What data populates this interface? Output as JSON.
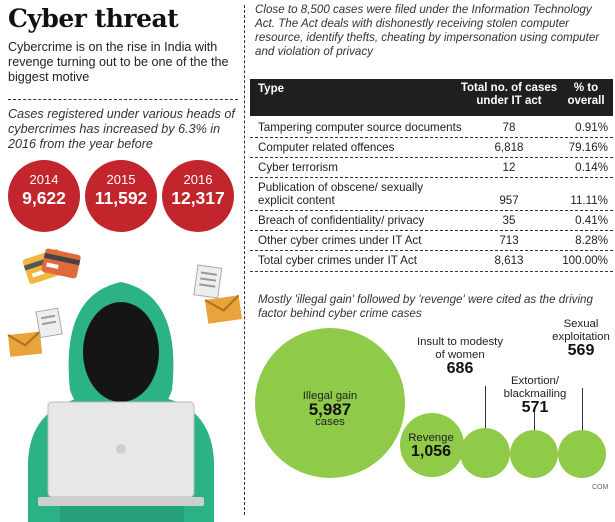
{
  "header": {
    "title": "Cyber threat",
    "subtitle": "Cybercrime is on the rise in India with revenge turning out to be one of the the biggest motive"
  },
  "stat_note": "Cases registered under various heads of cybercrimes has increased by 6.3% in 2016 from the year before",
  "years": [
    {
      "year": "2014",
      "count": "9,622"
    },
    {
      "year": "2015",
      "count": "11,592"
    },
    {
      "year": "2016",
      "count": "12,317"
    }
  ],
  "intro": "Close to 8,500 cases were filed under the Information Technology Act. The Act deals with dishonestly receiving stolen computer resource, identify thefts, cheating by impersonation using computer and violation of privacy",
  "table": {
    "headers": {
      "type": "Type",
      "cases": "Total no. of cases under IT act",
      "pct": "% to overall"
    },
    "rows": [
      {
        "type": "Tampering computer source documents",
        "cases": "78",
        "pct": "0.91%"
      },
      {
        "type": "Computer related offences",
        "cases": "6,818",
        "pct": "79.16%"
      },
      {
        "type": "Cyber terrorism",
        "cases": "12",
        "pct": "0.14%"
      },
      {
        "type": "Publication of obscene/ sexually explicit content",
        "cases": "957",
        "pct": "11.11%"
      },
      {
        "type": "Breach of confidentiality/ privacy",
        "cases": "35",
        "pct": "0.41%"
      },
      {
        "type": "Other cyber crimes under IT Act",
        "cases": "713",
        "pct": "8.28%"
      },
      {
        "type": "Total cyber crimes under IT Act",
        "cases": "8,613",
        "pct": "100.00%"
      }
    ]
  },
  "motives": {
    "note": "Mostly 'illegal gain' followed by 'revenge' were cited as the driving factor behind cyber crime cases",
    "items": [
      {
        "label": "Illegal gain",
        "value": "5,987",
        "unit": "cases"
      },
      {
        "label": "Revenge",
        "value": "1,056"
      },
      {
        "label": "Insult to modesty of women",
        "value": "686"
      },
      {
        "label": "Extortion/ blackmailing",
        "value": "571"
      },
      {
        "label": "Sexual exploitation",
        "value": "569"
      }
    ]
  },
  "credit": "COM",
  "colors": {
    "accent_red": "#c2252b",
    "bubble_green": "#8fca49",
    "hoodie_green": "#2bb387",
    "header_dark": "#1f1f1f"
  }
}
